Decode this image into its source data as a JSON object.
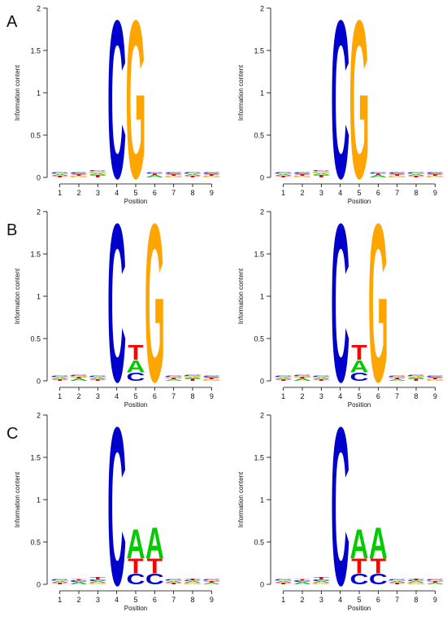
{
  "figure": {
    "panel_labels": [
      "A",
      "B",
      "C"
    ]
  },
  "colors": {
    "A": "#00CC00",
    "C": "#0000CC",
    "G": "#FFA500",
    "T": "#FF0000",
    "axis": "#000000"
  },
  "chart_data": [
    {
      "type": "sequence-logo",
      "panel": "A",
      "column": "left",
      "xlabel": "Position",
      "ylabel": "Information content",
      "x": [
        1,
        2,
        3,
        4,
        5,
        6,
        7,
        8,
        9
      ],
      "ylim": [
        0,
        2
      ],
      "yticks": [
        "0",
        "0.5",
        "1",
        "1.5",
        "2"
      ],
      "columns": [
        [
          {
            "base": "T",
            "height": 0.02
          },
          {
            "base": "A",
            "height": 0.02
          },
          {
            "base": "G",
            "height": 0.01
          },
          {
            "base": "C",
            "height": 0.01
          }
        ],
        [
          {
            "base": "G",
            "height": 0.02
          },
          {
            "base": "T",
            "height": 0.02
          },
          {
            "base": "A",
            "height": 0.01
          },
          {
            "base": "C",
            "height": 0.01
          }
        ],
        [
          {
            "base": "T",
            "height": 0.03
          },
          {
            "base": "A",
            "height": 0.02
          },
          {
            "base": "G",
            "height": 0.02
          },
          {
            "base": "C",
            "height": 0.01
          }
        ],
        [
          {
            "base": "C",
            "height": 1.92
          }
        ],
        [
          {
            "base": "G",
            "height": 1.92
          }
        ],
        [
          {
            "base": "A",
            "height": 0.03
          },
          {
            "base": "T",
            "height": 0.02
          },
          {
            "base": "C",
            "height": 0.01
          }
        ],
        [
          {
            "base": "G",
            "height": 0.02
          },
          {
            "base": "T",
            "height": 0.02
          },
          {
            "base": "A",
            "height": 0.01
          },
          {
            "base": "C",
            "height": 0.01
          }
        ],
        [
          {
            "base": "T",
            "height": 0.02
          },
          {
            "base": "A",
            "height": 0.02
          },
          {
            "base": "G",
            "height": 0.01
          },
          {
            "base": "C",
            "height": 0.01
          }
        ],
        [
          {
            "base": "G",
            "height": 0.02
          },
          {
            "base": "T",
            "height": 0.02
          },
          {
            "base": "A",
            "height": 0.01
          },
          {
            "base": "C",
            "height": 0.01
          }
        ]
      ]
    },
    {
      "type": "sequence-logo",
      "panel": "A",
      "column": "right",
      "xlabel": "Position",
      "ylabel": "Information content",
      "x": [
        1,
        2,
        3,
        4,
        5,
        6,
        7,
        8,
        9
      ],
      "ylim": [
        0,
        2
      ],
      "yticks": [
        "0",
        "0.5",
        "1",
        "1.5",
        "2"
      ],
      "columns": [
        [
          {
            "base": "T",
            "height": 0.02
          },
          {
            "base": "A",
            "height": 0.02
          },
          {
            "base": "G",
            "height": 0.01
          },
          {
            "base": "C",
            "height": 0.01
          }
        ],
        [
          {
            "base": "G",
            "height": 0.02
          },
          {
            "base": "T",
            "height": 0.02
          },
          {
            "base": "A",
            "height": 0.01
          },
          {
            "base": "C",
            "height": 0.01
          }
        ],
        [
          {
            "base": "T",
            "height": 0.03
          },
          {
            "base": "A",
            "height": 0.02
          },
          {
            "base": "G",
            "height": 0.02
          },
          {
            "base": "C",
            "height": 0.01
          }
        ],
        [
          {
            "base": "C",
            "height": 1.92
          }
        ],
        [
          {
            "base": "G",
            "height": 1.92
          }
        ],
        [
          {
            "base": "A",
            "height": 0.03
          },
          {
            "base": "T",
            "height": 0.02
          },
          {
            "base": "C",
            "height": 0.01
          }
        ],
        [
          {
            "base": "G",
            "height": 0.02
          },
          {
            "base": "T",
            "height": 0.02
          },
          {
            "base": "A",
            "height": 0.01
          },
          {
            "base": "C",
            "height": 0.01
          }
        ],
        [
          {
            "base": "T",
            "height": 0.02
          },
          {
            "base": "A",
            "height": 0.02
          },
          {
            "base": "G",
            "height": 0.01
          },
          {
            "base": "C",
            "height": 0.01
          }
        ],
        [
          {
            "base": "G",
            "height": 0.02
          },
          {
            "base": "T",
            "height": 0.02
          },
          {
            "base": "A",
            "height": 0.01
          },
          {
            "base": "C",
            "height": 0.01
          }
        ]
      ]
    },
    {
      "type": "sequence-logo",
      "panel": "B",
      "column": "left",
      "xlabel": "Position",
      "ylabel": "Information content",
      "x": [
        1,
        2,
        3,
        4,
        5,
        6,
        7,
        8,
        9
      ],
      "ylim": [
        0,
        2
      ],
      "yticks": [
        "0",
        "0.5",
        "1",
        "1.5",
        "2"
      ],
      "columns": [
        [
          {
            "base": "T",
            "height": 0.02
          },
          {
            "base": "A",
            "height": 0.02
          },
          {
            "base": "G",
            "height": 0.01
          },
          {
            "base": "C",
            "height": 0.01
          }
        ],
        [
          {
            "base": "A",
            "height": 0.03
          },
          {
            "base": "T",
            "height": 0.02
          },
          {
            "base": "G",
            "height": 0.01
          },
          {
            "base": "C",
            "height": 0.01
          }
        ],
        [
          {
            "base": "T",
            "height": 0.02
          },
          {
            "base": "A",
            "height": 0.02
          },
          {
            "base": "G",
            "height": 0.01
          },
          {
            "base": "C",
            "height": 0.01
          }
        ],
        [
          {
            "base": "C",
            "height": 1.92
          }
        ],
        [
          {
            "base": "C",
            "height": 0.1
          },
          {
            "base": "A",
            "height": 0.15
          },
          {
            "base": "T",
            "height": 0.18
          }
        ],
        [
          {
            "base": "G",
            "height": 1.92
          }
        ],
        [
          {
            "base": "A",
            "height": 0.02
          },
          {
            "base": "T",
            "height": 0.02
          },
          {
            "base": "G",
            "height": 0.01
          },
          {
            "base": "C",
            "height": 0.01
          }
        ],
        [
          {
            "base": "T",
            "height": 0.03
          },
          {
            "base": "A",
            "height": 0.02
          },
          {
            "base": "G",
            "height": 0.01
          },
          {
            "base": "C",
            "height": 0.01
          }
        ],
        [
          {
            "base": "G",
            "height": 0.02
          },
          {
            "base": "T",
            "height": 0.02
          },
          {
            "base": "A",
            "height": 0.01
          },
          {
            "base": "C",
            "height": 0.01
          }
        ]
      ]
    },
    {
      "type": "sequence-logo",
      "panel": "B",
      "column": "right",
      "xlabel": "Position",
      "ylabel": "Information content",
      "x": [
        1,
        2,
        3,
        4,
        5,
        6,
        7,
        8,
        9
      ],
      "ylim": [
        0,
        2
      ],
      "yticks": [
        "0",
        "0.5",
        "1",
        "1.5",
        "2"
      ],
      "columns": [
        [
          {
            "base": "T",
            "height": 0.02
          },
          {
            "base": "A",
            "height": 0.02
          },
          {
            "base": "G",
            "height": 0.01
          },
          {
            "base": "C",
            "height": 0.01
          }
        ],
        [
          {
            "base": "A",
            "height": 0.03
          },
          {
            "base": "T",
            "height": 0.02
          },
          {
            "base": "G",
            "height": 0.01
          },
          {
            "base": "C",
            "height": 0.01
          }
        ],
        [
          {
            "base": "T",
            "height": 0.02
          },
          {
            "base": "A",
            "height": 0.02
          },
          {
            "base": "G",
            "height": 0.01
          },
          {
            "base": "C",
            "height": 0.01
          }
        ],
        [
          {
            "base": "C",
            "height": 1.92
          }
        ],
        [
          {
            "base": "C",
            "height": 0.1
          },
          {
            "base": "A",
            "height": 0.15
          },
          {
            "base": "T",
            "height": 0.18
          }
        ],
        [
          {
            "base": "G",
            "height": 1.92
          }
        ],
        [
          {
            "base": "A",
            "height": 0.02
          },
          {
            "base": "T",
            "height": 0.02
          },
          {
            "base": "G",
            "height": 0.01
          },
          {
            "base": "C",
            "height": 0.01
          }
        ],
        [
          {
            "base": "T",
            "height": 0.03
          },
          {
            "base": "A",
            "height": 0.02
          },
          {
            "base": "G",
            "height": 0.01
          },
          {
            "base": "C",
            "height": 0.01
          }
        ],
        [
          {
            "base": "G",
            "height": 0.02
          },
          {
            "base": "T",
            "height": 0.02
          },
          {
            "base": "A",
            "height": 0.01
          },
          {
            "base": "C",
            "height": 0.01
          }
        ]
      ]
    },
    {
      "type": "sequence-logo",
      "panel": "C",
      "column": "left",
      "xlabel": "Position",
      "ylabel": "Information content",
      "x": [
        1,
        2,
        3,
        4,
        5,
        6,
        7,
        8,
        9
      ],
      "ylim": [
        0,
        2
      ],
      "yticks": [
        "0",
        "0.5",
        "1",
        "1.5",
        "2"
      ],
      "columns": [
        [
          {
            "base": "T",
            "height": 0.02
          },
          {
            "base": "A",
            "height": 0.02
          },
          {
            "base": "G",
            "height": 0.01
          },
          {
            "base": "C",
            "height": 0.01
          }
        ],
        [
          {
            "base": "A",
            "height": 0.03
          },
          {
            "base": "C",
            "height": 0.02
          },
          {
            "base": "T",
            "height": 0.01
          }
        ],
        [
          {
            "base": "G",
            "height": 0.02
          },
          {
            "base": "A",
            "height": 0.02
          },
          {
            "base": "C",
            "height": 0.02
          },
          {
            "base": "T",
            "height": 0.03
          }
        ],
        [
          {
            "base": "C",
            "height": 1.92
          }
        ],
        [
          {
            "base": "C",
            "height": 0.13
          },
          {
            "base": "T",
            "height": 0.18
          },
          {
            "base": "A",
            "height": 0.35
          }
        ],
        [
          {
            "base": "C",
            "height": 0.13
          },
          {
            "base": "T",
            "height": 0.18
          },
          {
            "base": "A",
            "height": 0.38
          }
        ],
        [
          {
            "base": "T",
            "height": 0.02
          },
          {
            "base": "A",
            "height": 0.02
          },
          {
            "base": "G",
            "height": 0.01
          },
          {
            "base": "C",
            "height": 0.01
          }
        ],
        [
          {
            "base": "G",
            "height": 0.02
          },
          {
            "base": "A",
            "height": 0.02
          },
          {
            "base": "C",
            "height": 0.01
          },
          {
            "base": "T",
            "height": 0.02
          }
        ],
        [
          {
            "base": "A",
            "height": 0.02
          },
          {
            "base": "T",
            "height": 0.02
          },
          {
            "base": "G",
            "height": 0.01
          },
          {
            "base": "C",
            "height": 0.01
          }
        ]
      ]
    },
    {
      "type": "sequence-logo",
      "panel": "C",
      "column": "right",
      "xlabel": "Position",
      "ylabel": "Information content",
      "x": [
        1,
        2,
        3,
        4,
        5,
        6,
        7,
        8,
        9
      ],
      "ylim": [
        0,
        2
      ],
      "yticks": [
        "0",
        "0.5",
        "1",
        "1.5",
        "2"
      ],
      "columns": [
        [
          {
            "base": "T",
            "height": 0.02
          },
          {
            "base": "A",
            "height": 0.02
          },
          {
            "base": "G",
            "height": 0.01
          },
          {
            "base": "C",
            "height": 0.01
          }
        ],
        [
          {
            "base": "A",
            "height": 0.03
          },
          {
            "base": "C",
            "height": 0.02
          },
          {
            "base": "T",
            "height": 0.01
          }
        ],
        [
          {
            "base": "G",
            "height": 0.02
          },
          {
            "base": "A",
            "height": 0.02
          },
          {
            "base": "C",
            "height": 0.02
          },
          {
            "base": "T",
            "height": 0.03
          }
        ],
        [
          {
            "base": "C",
            "height": 1.92
          }
        ],
        [
          {
            "base": "C",
            "height": 0.13
          },
          {
            "base": "T",
            "height": 0.18
          },
          {
            "base": "A",
            "height": 0.35
          }
        ],
        [
          {
            "base": "C",
            "height": 0.13
          },
          {
            "base": "T",
            "height": 0.18
          },
          {
            "base": "A",
            "height": 0.38
          }
        ],
        [
          {
            "base": "T",
            "height": 0.02
          },
          {
            "base": "A",
            "height": 0.02
          },
          {
            "base": "G",
            "height": 0.01
          },
          {
            "base": "C",
            "height": 0.01
          }
        ],
        [
          {
            "base": "G",
            "height": 0.02
          },
          {
            "base": "A",
            "height": 0.02
          },
          {
            "base": "C",
            "height": 0.01
          },
          {
            "base": "T",
            "height": 0.02
          }
        ],
        [
          {
            "base": "A",
            "height": 0.02
          },
          {
            "base": "T",
            "height": 0.02
          },
          {
            "base": "G",
            "height": 0.01
          },
          {
            "base": "C",
            "height": 0.01
          }
        ]
      ]
    }
  ]
}
